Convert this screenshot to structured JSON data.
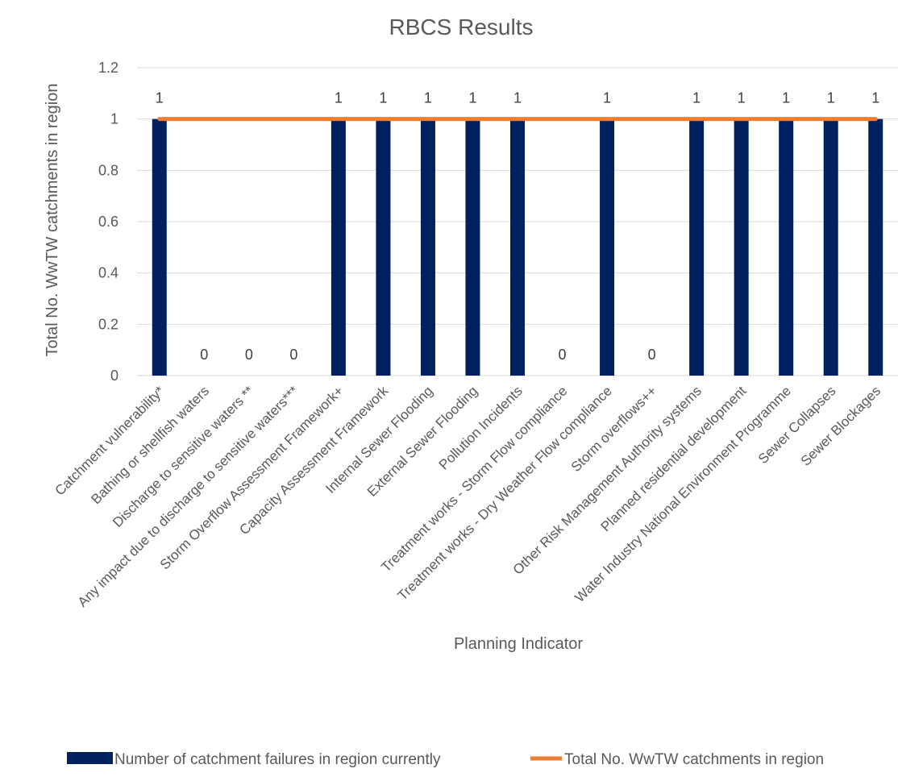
{
  "chart_data": {
    "type": "bar",
    "title": "RBCS Results",
    "xlabel": "Planning Indicator",
    "ylabel": "Total No. WwTW catchments in region",
    "ylim": [
      0,
      1.2
    ],
    "yticks": [
      "0",
      "0.2",
      "0.4",
      "0.6",
      "0.8",
      "1",
      "1.2"
    ],
    "grid": true,
    "legend_position": "bottom",
    "categories": [
      "Catchment vulnerability*",
      "Bathing or shellfish waters",
      "Discharge to sensitive waters **",
      "Any impact due to discharge to sensitive waters***",
      "Storm Overflow Assessment Framework+",
      "Capacity Assessment Framework",
      "Internal Sewer Flooding",
      "External Sewer Flooding",
      "Pollution Incidents",
      "Treatment works - Storm Flow compliance",
      "Treatment works - Dry Weather Flow compliance",
      "Storm overflows++",
      "Other Risk Management Authority systems",
      "Planned residential development",
      "Water Industry National Environment Programme",
      "Sewer Collapses",
      "Sewer Blockages"
    ],
    "series": [
      {
        "name": "Number of catchment failures in region currently",
        "kind": "bar",
        "color": "#002060",
        "values": [
          1,
          0,
          0,
          0,
          1,
          1,
          1,
          1,
          1,
          0,
          1,
          0,
          1,
          1,
          1,
          1,
          1
        ],
        "labels": [
          "1",
          "0",
          "0",
          "0",
          "1",
          "1",
          "1",
          "1",
          "1",
          "0",
          "1",
          "0",
          "1",
          "1",
          "1",
          "1",
          "1"
        ]
      },
      {
        "name": "Total No. WwTW catchments in region",
        "kind": "line",
        "color": "#ed7d31",
        "values": [
          1,
          1,
          1,
          1,
          1,
          1,
          1,
          1,
          1,
          1,
          1,
          1,
          1,
          1,
          1,
          1,
          1
        ]
      }
    ]
  }
}
